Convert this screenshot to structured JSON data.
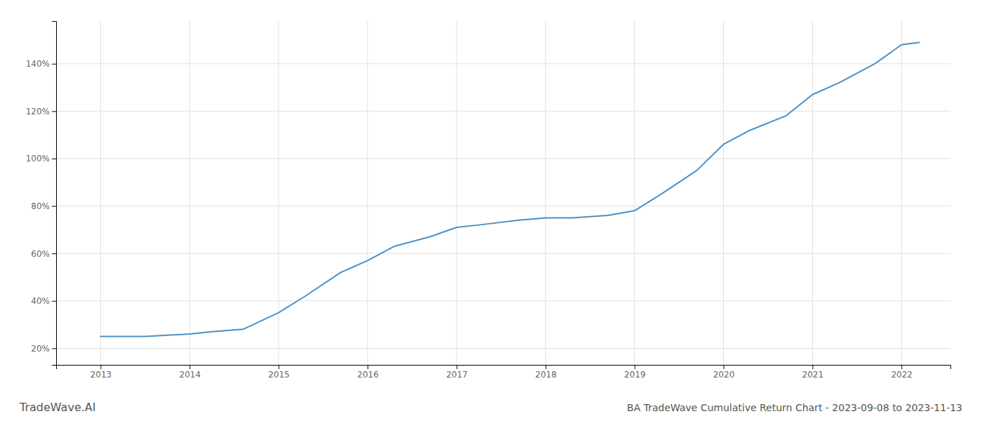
{
  "chart_data": {
    "type": "line",
    "x": [
      2013.0,
      2013.5,
      2014.0,
      2014.25,
      2014.6,
      2015.0,
      2015.3,
      2015.7,
      2016.0,
      2016.3,
      2016.7,
      2017.0,
      2017.25,
      2017.7,
      2018.0,
      2018.3,
      2018.7,
      2019.0,
      2019.3,
      2019.7,
      2020.0,
      2020.3,
      2020.7,
      2021.0,
      2021.3,
      2021.7,
      2022.0,
      2022.2
    ],
    "values": [
      25,
      25,
      26,
      27,
      28,
      35,
      42,
      52,
      57,
      63,
      67,
      71,
      72,
      74,
      75,
      75,
      76,
      78,
      85,
      95,
      106,
      112,
      118,
      127,
      132,
      140,
      148,
      149
    ],
    "color": "#4a90c4",
    "xlim": [
      2012.5,
      2022.55
    ],
    "xticks": [
      2013,
      2014,
      2015,
      2016,
      2017,
      2018,
      2019,
      2020,
      2021,
      2022
    ],
    "ylim": [
      13,
      158
    ],
    "yticks": [
      {
        "value": 20,
        "label": "20%"
      },
      {
        "value": 40,
        "label": "40%"
      },
      {
        "value": 60,
        "label": "60%"
      },
      {
        "value": 80,
        "label": "80%"
      },
      {
        "value": 100,
        "label": "100%"
      },
      {
        "value": 120,
        "label": "120%"
      },
      {
        "value": 140,
        "label": "140%"
      }
    ],
    "grid": true,
    "annotations": [
      "TradeWave.AI",
      "BA TradeWave Cumulative Return Chart - 2023-09-08 to 2023-11-13"
    ]
  }
}
